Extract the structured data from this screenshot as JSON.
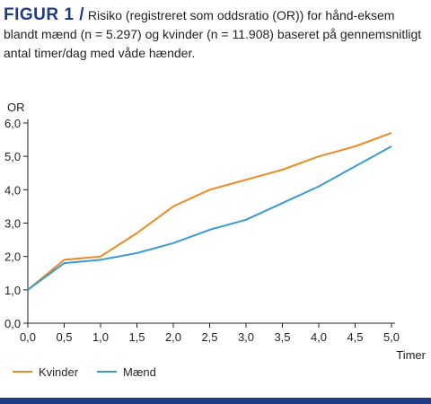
{
  "caption": {
    "label": "FIGUR 1 /",
    "text": "Risiko (registreret som oddsratio (OR)) for hånd-eksem blandt mænd (n = 5.297) og kvinder (n = 11.908) baseret på gennemsnitligt antal timer/dag med våde hænder."
  },
  "colors": {
    "accent": "#1f3c88",
    "kvinder": "#ee8a23",
    "maend": "#3b9bd0",
    "axis": "#231f20"
  },
  "chart_data": {
    "type": "line",
    "ylabel": "OR",
    "xlabel": "Timer",
    "x": [
      0,
      0.5,
      1,
      1.5,
      2,
      2.5,
      3,
      3.5,
      4,
      4.5,
      5
    ],
    "xticks": [
      "0,0",
      "0,5",
      "1,0",
      "1,5",
      "2,0",
      "2,5",
      "3,0",
      "3,5",
      "4,0",
      "4,5",
      "5,0"
    ],
    "yticks": [
      "0,0",
      "1,0",
      "2,0",
      "3,0",
      "4,0",
      "5,0",
      "6,0"
    ],
    "xlim": [
      0,
      5
    ],
    "ylim": [
      0,
      6
    ],
    "grid": false,
    "legend_position": "bottom-left",
    "series": [
      {
        "name": "Kvinder",
        "color": "#ee8a23",
        "values": [
          1.0,
          1.9,
          2.0,
          2.7,
          3.5,
          4.0,
          4.3,
          4.6,
          5.0,
          5.3,
          5.7
        ]
      },
      {
        "name": "Mænd",
        "color": "#3b9bd0",
        "values": [
          1.0,
          1.8,
          1.9,
          2.1,
          2.4,
          2.8,
          3.1,
          3.6,
          4.1,
          4.7,
          5.3
        ]
      }
    ]
  }
}
